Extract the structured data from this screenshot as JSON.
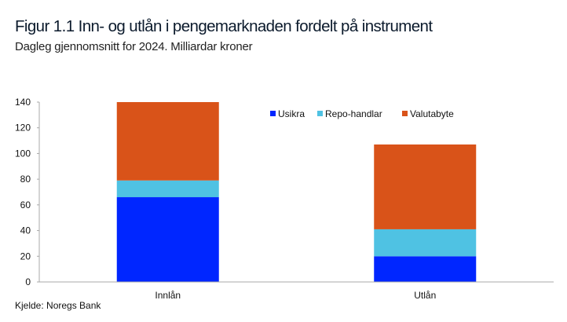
{
  "header": {
    "title": "Figur 1.1 Inn- og utlån i pengemarknaden fordelt på instrument",
    "subtitle": "Dagleg gjennomsnitt for 2024. Milliardar kroner"
  },
  "footer": {
    "source": "Kjelde: Noregs Bank"
  },
  "chart_data": {
    "type": "bar",
    "stacked": true,
    "title": "Figur 1.1 Inn- og utlån i pengemarknaden fordelt på instrument",
    "subtitle": "Dagleg gjennomsnitt for 2024. Milliardar kroner",
    "xlabel": "",
    "ylabel": "",
    "categories": [
      "Innlån",
      "Utlån"
    ],
    "series": [
      {
        "name": "Usikra",
        "color": "#0026ff",
        "values": [
          66,
          20
        ]
      },
      {
        "name": "Repo-handlar",
        "color": "#4fc2e3",
        "values": [
          13,
          21
        ]
      },
      {
        "name": "Valutabyte",
        "color": "#d95319",
        "values": [
          61,
          66
        ]
      }
    ],
    "ylim": [
      0,
      140
    ],
    "yticks": [
      0,
      20,
      40,
      60,
      80,
      100,
      120,
      140
    ],
    "grid": false,
    "legend_position": "top-right"
  }
}
